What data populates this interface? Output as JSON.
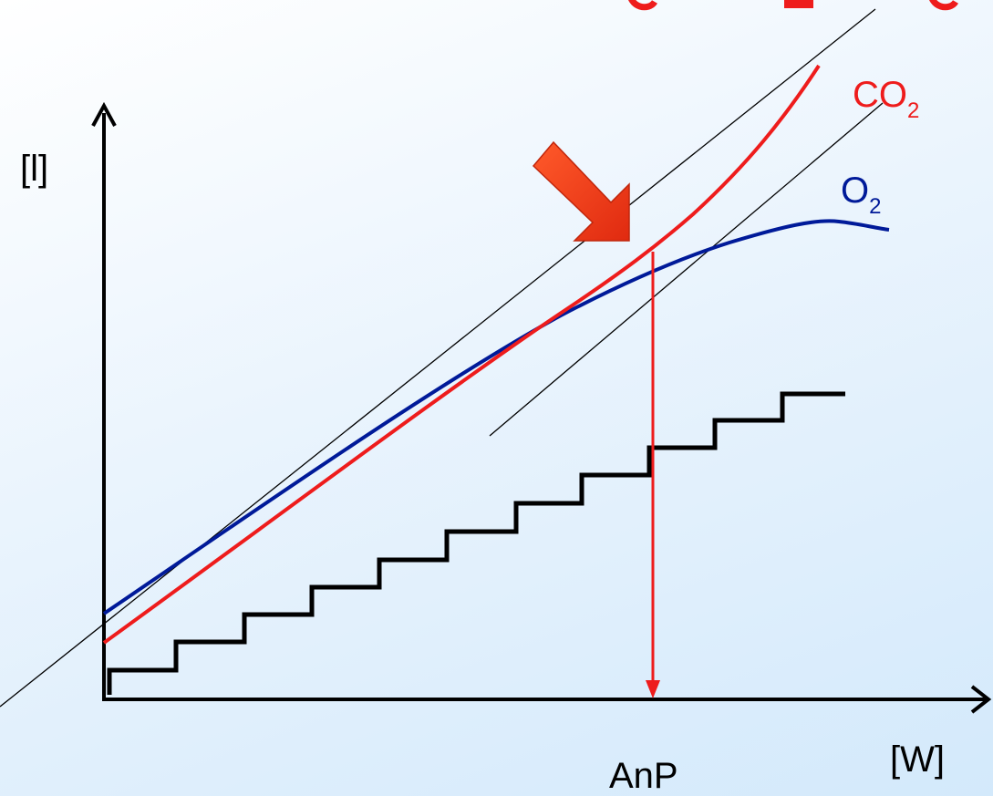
{
  "labels": {
    "y_axis": "[l]",
    "x_axis": "[W]",
    "threshold": "AnP",
    "co2_base": "CO",
    "co2_sub": "2",
    "o2_base": "O",
    "o2_sub": "2"
  },
  "colors": {
    "co2": "#ee1c1c",
    "o2": "#001a99",
    "steps": "#000000",
    "arrow": "#f03a1a",
    "title_fragment": "#ee1c1c"
  }
}
